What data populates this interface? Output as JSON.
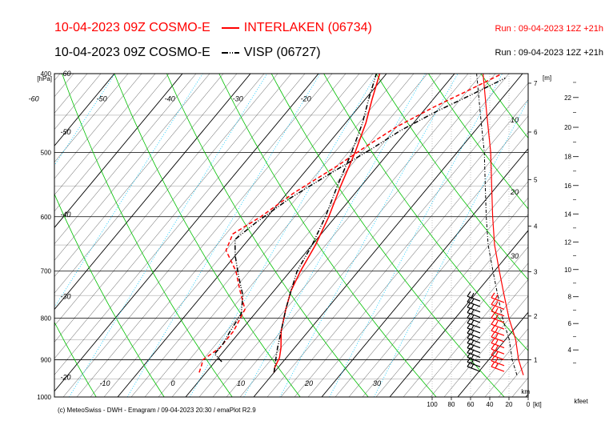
{
  "header": {
    "line1_text": "10-04-2023 09Z COSMO-E",
    "line1_station": "INTERLAKEN (06734)",
    "line2_text": "10-04-2023 09Z COSMO-E",
    "line2_station": "VISP (06727)",
    "run1": "Run : 09-04-2023 12Z +21h",
    "run2": "Run : 09-04-2023 12Z +21h"
  },
  "footer": "(c) MeteoSwiss - DWH - Emagram / 09-04-2023  20:30 / emaPlot R2.9",
  "colors": {
    "interlaken": "#ff0000",
    "visp": "#000000",
    "dry_adiabat": "#00c000",
    "isotherm": "#000000",
    "mixing_ratio": "#00c8ff",
    "moist_adiabat": "#888888"
  },
  "chart_data": {
    "type": "line",
    "chart_kind": "emagram",
    "xlim": [
      -60,
      40
    ],
    "ylim": [
      1000,
      400
    ],
    "y_scale": "log",
    "ylabel": "[hPa]",
    "pressure_ticks": [
      "400",
      "500",
      "600",
      "700",
      "800",
      "900",
      "1000"
    ],
    "temperature_ticks_bottom": [
      "-10",
      "0",
      "10",
      "20",
      "30"
    ],
    "temperature_ticks_top": [
      "-60",
      "-50",
      "-40",
      "-30",
      "-20"
    ],
    "isotherm_labels_left": [
      "-60",
      "-50",
      "-40",
      "-30",
      "-20"
    ],
    "height_axis_label": "[m]",
    "height_ticks_km": [
      "1",
      "2",
      "3",
      "4",
      "5",
      "6",
      "7"
    ],
    "km_label": "km",
    "kfeet_label": "kfeet",
    "kfeet_ticks": [
      "4",
      "6",
      "8",
      "10",
      "12",
      "14",
      "16",
      "18",
      "20",
      "22"
    ],
    "wind_profile_ticks": [
      "100",
      "80",
      "60",
      "40",
      "20",
      "0"
    ],
    "wind_profile_unit": "[kt]",
    "wind_profile_labels": [
      "10",
      "20",
      "30"
    ],
    "series": [
      {
        "station": "interlaken",
        "variable": "temperature",
        "points": [
          [
            10,
            933
          ],
          [
            9.5,
            920
          ],
          [
            9,
            895
          ],
          [
            8,
            870
          ],
          [
            6,
            830
          ],
          [
            4,
            780
          ],
          [
            2.5,
            740
          ],
          [
            1.5,
            700
          ],
          [
            0.5,
            650
          ],
          [
            -1,
            600
          ],
          [
            -3,
            550
          ],
          [
            -5,
            500
          ],
          [
            -7,
            460
          ],
          [
            -9,
            430
          ],
          [
            -11,
            400
          ]
        ]
      },
      {
        "station": "interlaken",
        "variable": "dewpoint",
        "points": [
          [
            -1,
            933
          ],
          [
            -1.5,
            915
          ],
          [
            -2,
            900
          ],
          [
            -1,
            870
          ],
          [
            -1,
            830
          ],
          [
            -2,
            780
          ],
          [
            -5,
            740
          ],
          [
            -8,
            700
          ],
          [
            -12,
            660
          ],
          [
            -13,
            630
          ],
          [
            -11,
            600
          ],
          [
            -9,
            560
          ],
          [
            -6,
            520
          ],
          [
            -4,
            490
          ],
          [
            -2,
            465
          ],
          [
            1,
            440
          ],
          [
            4,
            420
          ],
          [
            7,
            400
          ]
        ]
      },
      {
        "station": "visp",
        "variable": "temperature",
        "points": [
          [
            10,
            933
          ],
          [
            9.5,
            920
          ],
          [
            8.5,
            895
          ],
          [
            7.5,
            870
          ],
          [
            6,
            830
          ],
          [
            4,
            780
          ],
          [
            2.5,
            740
          ],
          [
            1,
            700
          ],
          [
            0,
            650
          ],
          [
            -1.5,
            600
          ],
          [
            -3.5,
            550
          ],
          [
            -5.5,
            500
          ],
          [
            -7.5,
            460
          ],
          [
            -9.5,
            430
          ],
          [
            -11.5,
            400
          ]
        ]
      },
      {
        "station": "visp",
        "variable": "dewpoint",
        "points": [
          [
            1,
            905
          ],
          [
            0,
            895
          ],
          [
            -1,
            885
          ],
          [
            -1,
            860
          ],
          [
            -1.5,
            830
          ],
          [
            -2,
            790
          ],
          [
            -4,
            750
          ],
          [
            -7,
            710
          ],
          [
            -10,
            670
          ],
          [
            -12,
            640
          ],
          [
            -11,
            610
          ],
          [
            -9,
            570
          ],
          [
            -6,
            530
          ],
          [
            -3,
            495
          ],
          [
            -1,
            470
          ],
          [
            2,
            445
          ],
          [
            5,
            425
          ],
          [
            8,
            405
          ]
        ]
      }
    ]
  }
}
